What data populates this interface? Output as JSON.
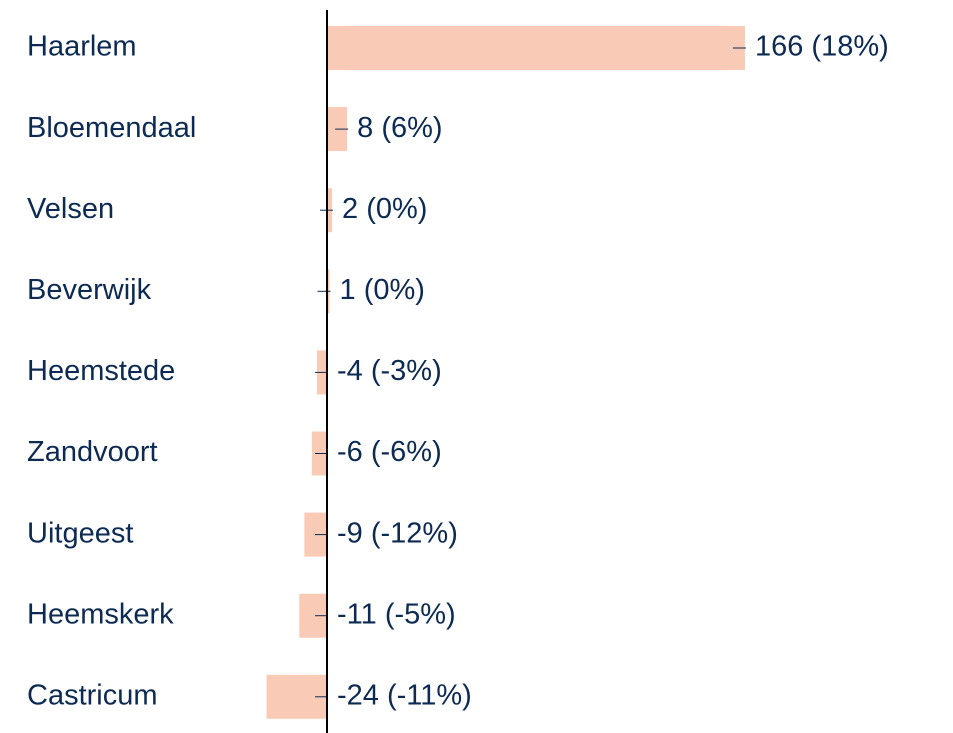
{
  "chart_data": {
    "type": "bar",
    "orientation": "horizontal",
    "categories": [
      "Haarlem",
      "Bloemendaal",
      "Velsen",
      "Beverwijk",
      "Heemstede",
      "Zandvoort",
      "Uitgeest",
      "Heemskerk",
      "Castricum"
    ],
    "values": [
      166,
      8,
      2,
      1,
      -4,
      -6,
      -9,
      -11,
      -24
    ],
    "value_labels": [
      "166 (18%)",
      "8 (6%)",
      "2 (0%)",
      "1 (0%)",
      "-4 (-3%)",
      "-6 (-6%)",
      "-9 (-12%)",
      "-11 (-5%)",
      "-24 (-11%)"
    ],
    "color": "#f9cbb6"
  }
}
